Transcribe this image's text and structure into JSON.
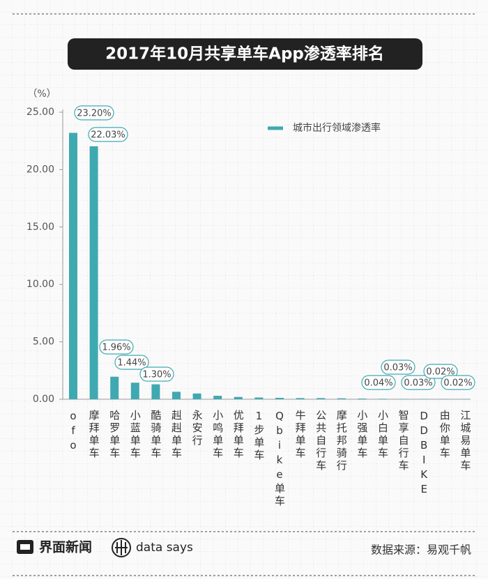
{
  "chart_data": {
    "type": "bar",
    "title": "2017年10月共享单车App渗透率排名",
    "y_unit": "（%）",
    "categories": [
      "ofo",
      "摩拜单车",
      "哈罗单车",
      "小蓝单车",
      "酷骑单车",
      "赳赳单车",
      "永安行",
      "小鸣单车",
      "优拜单车",
      "1步单车",
      "Qbike单车",
      "牛拜单车",
      "公共自行车",
      "摩托邦骑行",
      "小强单车",
      "小白单车",
      "智享自行车",
      "DDBIKE",
      "由你单车",
      "江城易单车"
    ],
    "series": [
      {
        "name": "城市出行领域渗透率",
        "color": "#3fa9b1",
        "values": [
          23.2,
          22.03,
          1.96,
          1.44,
          1.3,
          0.65,
          0.5,
          0.3,
          0.2,
          0.15,
          0.12,
          0.1,
          0.1,
          0.08,
          0.06,
          0.04,
          0.03,
          0.03,
          0.02,
          0.02
        ],
        "value_labels": [
          "23.20%",
          "22.03%",
          "1.96%",
          "1.44%",
          "1.30%",
          null,
          null,
          null,
          null,
          null,
          null,
          null,
          null,
          null,
          null,
          "0.04%",
          "0.03%",
          "0.03%",
          "0.02%",
          "0.02%"
        ]
      }
    ],
    "ylim": [
      0,
      25
    ],
    "yticks": [
      {
        "value": 0,
        "label": "0.00"
      },
      {
        "value": 5,
        "label": "5.00"
      },
      {
        "value": 10,
        "label": "10.00"
      },
      {
        "value": 15,
        "label": "15.00"
      },
      {
        "value": 20,
        "label": "20.00"
      },
      {
        "value": 25,
        "label": "25.00"
      }
    ],
    "legend_position": "upper right",
    "footer": {
      "brand": "界面新闻",
      "sub_brand": "data says",
      "source": "数据来源：易观千帆"
    }
  }
}
